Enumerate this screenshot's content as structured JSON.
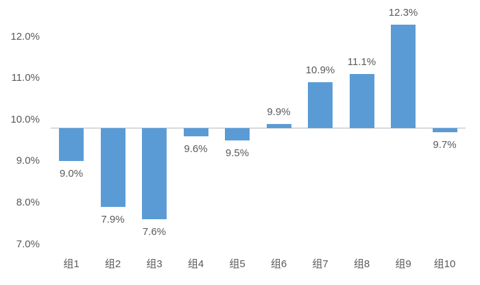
{
  "chart_data": {
    "type": "bar",
    "categories": [
      "组1",
      "组2",
      "组3",
      "组4",
      "组5",
      "组6",
      "组7",
      "组8",
      "组9",
      "组10"
    ],
    "values": [
      9.0,
      7.9,
      7.6,
      9.6,
      9.5,
      9.9,
      10.9,
      11.1,
      12.3,
      9.7
    ],
    "data_labels": [
      "9.0%",
      "7.9%",
      "7.6%",
      "9.6%",
      "9.5%",
      "9.9%",
      "10.9%",
      "11.1%",
      "12.3%",
      "9.7%"
    ],
    "y_ticks": [
      "7.0%",
      "8.0%",
      "9.0%",
      "10.0%",
      "11.0%",
      "12.0%"
    ],
    "y_tick_values": [
      7.0,
      8.0,
      9.0,
      10.0,
      11.0,
      12.0
    ],
    "ylim": [
      6.8,
      12.55
    ],
    "axis_crossing": 9.8,
    "grid": false,
    "legend": "none",
    "data_label_position": "outside-end",
    "colors": {
      "bar": "#5b9bd5",
      "axis_line": "#d9d9d9",
      "text": "#595959",
      "background": "#ffffff"
    }
  }
}
